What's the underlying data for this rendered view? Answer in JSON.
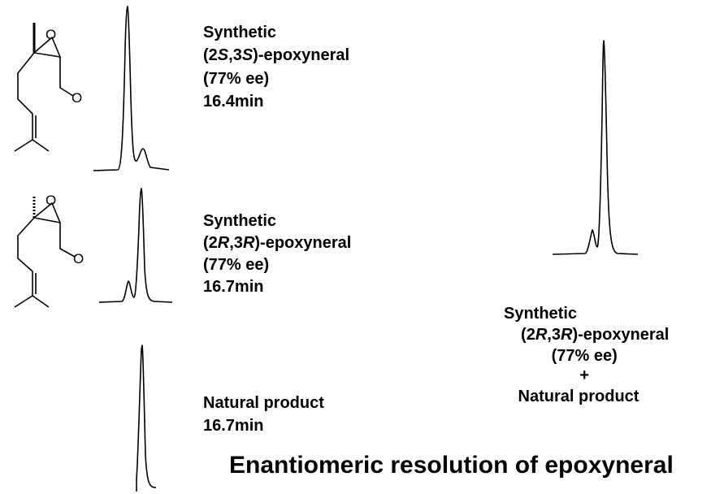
{
  "panels": [
    {
      "lines": [
        "Synthetic",
        [
          "(2",
          "S",
          ",3",
          "S",
          ")-epoxyneral"
        ],
        "(77% ee)",
        "16.4min"
      ]
    },
    {
      "lines": [
        "Synthetic",
        [
          "(2",
          "R",
          ",3",
          "R",
          ")-epoxyneral"
        ],
        "(77% ee)",
        "16.7min"
      ]
    },
    {
      "lines": [
        "Natural product",
        "16.7min"
      ]
    }
  ],
  "combined": {
    "lines": [
      "Synthetic",
      [
        "(2",
        "R",
        ",3",
        "R",
        ")-epoxyneral"
      ],
      "(77% ee)",
      "+",
      "Natural product"
    ]
  },
  "title": "Enantiomeric resolution of epoxyneral"
}
